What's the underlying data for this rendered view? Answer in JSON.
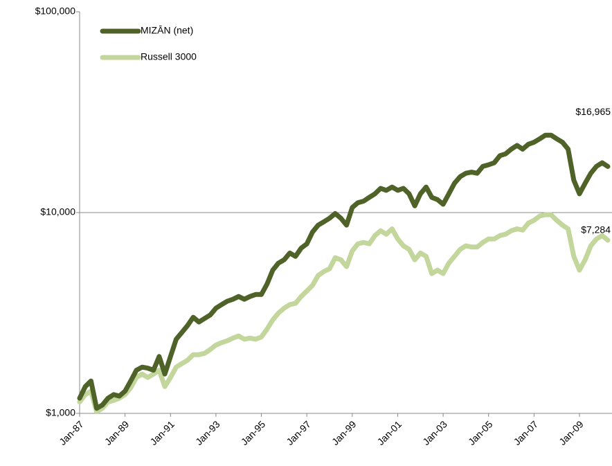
{
  "chart_data": {
    "type": "line",
    "log_scale": true,
    "ylim": [
      1000,
      100000
    ],
    "yticks": [
      {
        "value": 1000,
        "label": "$1,000"
      },
      {
        "value": 10000,
        "label": "$10,000"
      },
      {
        "value": 100000,
        "label": "$100,000"
      }
    ],
    "grid": true,
    "legend": "top-left",
    "categories": [
      "Jan-87",
      null,
      null,
      null,
      null,
      null,
      null,
      null,
      "Jan-89",
      null,
      null,
      null,
      null,
      null,
      null,
      null,
      "Jan-91",
      null,
      null,
      null,
      null,
      null,
      null,
      null,
      "Jan-93",
      null,
      null,
      null,
      null,
      null,
      null,
      null,
      "Jan-95",
      null,
      null,
      null,
      null,
      null,
      null,
      null,
      "Jan-97",
      null,
      null,
      null,
      null,
      null,
      null,
      null,
      "Jan-99",
      null,
      null,
      null,
      null,
      null,
      null,
      null,
      "Jan-01",
      null,
      null,
      null,
      null,
      null,
      null,
      null,
      "Jan-03",
      null,
      null,
      null,
      null,
      null,
      null,
      null,
      "Jan-05",
      null,
      null,
      null,
      null,
      null,
      null,
      null,
      "Jan-07",
      null,
      null,
      null,
      null,
      null,
      null,
      null,
      "Jan-09",
      null,
      null,
      null,
      null,
      null
    ],
    "series": [
      {
        "name": "MIZĀN (net)",
        "color": "#4f6228",
        "end_label": "$16,965",
        "values": [
          1190,
          1360,
          1450,
          1060,
          1100,
          1190,
          1240,
          1220,
          1290,
          1450,
          1640,
          1700,
          1680,
          1640,
          1920,
          1570,
          1920,
          2340,
          2530,
          2740,
          3010,
          2850,
          2970,
          3090,
          3340,
          3480,
          3620,
          3700,
          3820,
          3700,
          3820,
          3910,
          3910,
          4410,
          5170,
          5600,
          5820,
          6290,
          6050,
          6650,
          6990,
          8000,
          8660,
          9000,
          9370,
          9900,
          9370,
          8660,
          10600,
          11200,
          11400,
          11900,
          12400,
          13200,
          12900,
          13400,
          12900,
          13200,
          12400,
          10800,
          12400,
          13400,
          11900,
          11600,
          11000,
          12400,
          14000,
          15100,
          15700,
          15900,
          15700,
          17000,
          17300,
          17700,
          19200,
          19600,
          20700,
          21600,
          20700,
          21900,
          22400,
          23300,
          24300,
          24300,
          23300,
          22400,
          20700,
          14500,
          12400,
          14000,
          15700,
          17000,
          17700,
          16965
        ]
      },
      {
        "name": "Russell 3000",
        "color": "#c3d69b",
        "end_label": "$7,284",
        "end_label_color": "#77933c",
        "values": [
          1140,
          1240,
          1290,
          1020,
          1060,
          1140,
          1160,
          1190,
          1240,
          1340,
          1510,
          1570,
          1510,
          1570,
          1640,
          1360,
          1510,
          1700,
          1770,
          1840,
          1960,
          1960,
          1990,
          2080,
          2190,
          2250,
          2300,
          2370,
          2430,
          2340,
          2370,
          2340,
          2400,
          2630,
          2920,
          3160,
          3340,
          3480,
          3530,
          3820,
          4070,
          4340,
          4860,
          5090,
          5250,
          5960,
          5820,
          5380,
          6440,
          6990,
          7100,
          6990,
          7680,
          8120,
          7800,
          8300,
          7390,
          6830,
          6560,
          5820,
          6290,
          6050,
          4970,
          5170,
          4970,
          5600,
          6050,
          6560,
          6830,
          6740,
          6740,
          7100,
          7390,
          7390,
          7680,
          7800,
          8120,
          8300,
          8180,
          8860,
          9150,
          9610,
          9760,
          9760,
          9150,
          8660,
          8300,
          6050,
          5170,
          5820,
          6830,
          7390,
          7680,
          7284
        ]
      }
    ]
  }
}
